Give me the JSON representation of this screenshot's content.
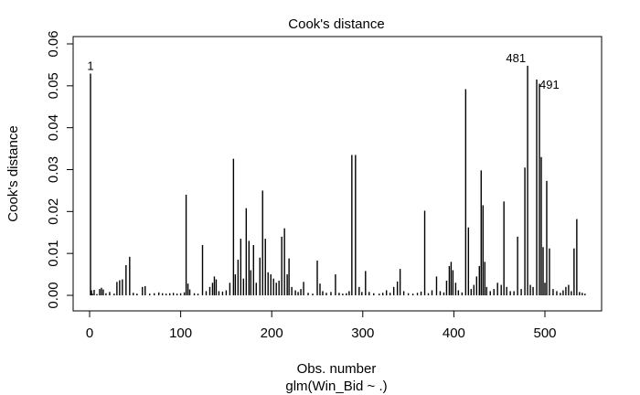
{
  "chart_data": {
    "type": "bar",
    "title": "Cook's distance",
    "xlabel": "Obs. number",
    "sublabel": "glm(Win_Bid ~ .)",
    "ylabel": "Cook's distance",
    "xlim": [
      0,
      545
    ],
    "ylim": [
      0,
      0.06
    ],
    "x_ticks": [
      0,
      100,
      200,
      300,
      400,
      500
    ],
    "y_ticks": [
      0.0,
      0.01,
      0.02,
      0.03,
      0.04,
      0.05,
      0.06
    ],
    "x_tick_labels": [
      "0",
      "100",
      "200",
      "300",
      "400",
      "500"
    ],
    "y_tick_labels": [
      "0.00",
      "0.01",
      "0.02",
      "0.03",
      "0.04",
      "0.05",
      "0.06"
    ],
    "grid": false,
    "annotations": [
      {
        "text": "1",
        "obs": 1
      },
      {
        "text": "481",
        "obs": 481
      },
      {
        "text": "491",
        "obs": 491
      }
    ],
    "points": [
      [
        1,
        0.0529
      ],
      [
        2,
        0.0012
      ],
      [
        3,
        0.0004
      ],
      [
        5,
        0.0013
      ],
      [
        8,
        0.0003
      ],
      [
        11,
        0.0015
      ],
      [
        13,
        0.0018
      ],
      [
        15,
        0.0014
      ],
      [
        18,
        0.0005
      ],
      [
        22,
        0.0008
      ],
      [
        27,
        0.0004
      ],
      [
        30,
        0.0032
      ],
      [
        33,
        0.0036
      ],
      [
        36,
        0.0038
      ],
      [
        40,
        0.0072
      ],
      [
        44,
        0.0092
      ],
      [
        48,
        0.0006
      ],
      [
        52,
        0.0004
      ],
      [
        58,
        0.002
      ],
      [
        61,
        0.0022
      ],
      [
        66,
        0.0004
      ],
      [
        71,
        0.0005
      ],
      [
        76,
        0.0007
      ],
      [
        80,
        0.0005
      ],
      [
        84,
        0.0004
      ],
      [
        88,
        0.0005
      ],
      [
        92,
        0.0006
      ],
      [
        96,
        0.0004
      ],
      [
        100,
        0.0005
      ],
      [
        104,
        0.0007
      ],
      [
        106,
        0.024
      ],
      [
        108,
        0.0028
      ],
      [
        110,
        0.0014
      ],
      [
        115,
        0.0005
      ],
      [
        119,
        0.0004
      ],
      [
        124,
        0.012
      ],
      [
        128,
        0.001
      ],
      [
        132,
        0.002
      ],
      [
        135,
        0.003
      ],
      [
        137,
        0.0045
      ],
      [
        139,
        0.0038
      ],
      [
        142,
        0.001
      ],
      [
        146,
        0.0009
      ],
      [
        150,
        0.0012
      ],
      [
        154,
        0.003
      ],
      [
        158,
        0.0326
      ],
      [
        160,
        0.005
      ],
      [
        163,
        0.0085
      ],
      [
        166,
        0.0135
      ],
      [
        169,
        0.004
      ],
      [
        172,
        0.0208
      ],
      [
        175,
        0.013
      ],
      [
        177,
        0.006
      ],
      [
        180,
        0.012
      ],
      [
        183,
        0.003
      ],
      [
        187,
        0.009
      ],
      [
        190,
        0.025
      ],
      [
        193,
        0.0135
      ],
      [
        196,
        0.0055
      ],
      [
        199,
        0.005
      ],
      [
        202,
        0.004
      ],
      [
        205,
        0.003
      ],
      [
        208,
        0.0035
      ],
      [
        211,
        0.014
      ],
      [
        214,
        0.016
      ],
      [
        217,
        0.005
      ],
      [
        219,
        0.0088
      ],
      [
        222,
        0.002
      ],
      [
        226,
        0.0012
      ],
      [
        229,
        0.0008
      ],
      [
        232,
        0.0015
      ],
      [
        235,
        0.0032
      ],
      [
        240,
        0.0006
      ],
      [
        245,
        0.0004
      ],
      [
        250,
        0.0083
      ],
      [
        253,
        0.0028
      ],
      [
        256,
        0.001
      ],
      [
        260,
        0.0006
      ],
      [
        265,
        0.0008
      ],
      [
        270,
        0.005
      ],
      [
        274,
        0.0006
      ],
      [
        278,
        0.0004
      ],
      [
        282,
        0.0005
      ],
      [
        285,
        0.001
      ],
      [
        288,
        0.0335
      ],
      [
        292,
        0.0335
      ],
      [
        296,
        0.002
      ],
      [
        299,
        0.0008
      ],
      [
        303,
        0.0058
      ],
      [
        307,
        0.0008
      ],
      [
        312,
        0.0005
      ],
      [
        318,
        0.0004
      ],
      [
        322,
        0.0006
      ],
      [
        326,
        0.0012
      ],
      [
        330,
        0.0006
      ],
      [
        334,
        0.002
      ],
      [
        338,
        0.0033
      ],
      [
        341,
        0.0063
      ],
      [
        345,
        0.001
      ],
      [
        350,
        0.0005
      ],
      [
        355,
        0.0004
      ],
      [
        360,
        0.0006
      ],
      [
        364,
        0.0009
      ],
      [
        368,
        0.0202
      ],
      [
        372,
        0.0005
      ],
      [
        376,
        0.0012
      ],
      [
        381,
        0.0045
      ],
      [
        385,
        0.001
      ],
      [
        389,
        0.0007
      ],
      [
        392,
        0.0035
      ],
      [
        395,
        0.007
      ],
      [
        397,
        0.008
      ],
      [
        399,
        0.006
      ],
      [
        402,
        0.003
      ],
      [
        405,
        0.0012
      ],
      [
        409,
        0.0007
      ],
      [
        413,
        0.0492
      ],
      [
        416,
        0.0162
      ],
      [
        419,
        0.0015
      ],
      [
        422,
        0.0025
      ],
      [
        425,
        0.0045
      ],
      [
        428,
        0.007
      ],
      [
        430,
        0.0298
      ],
      [
        432,
        0.0215
      ],
      [
        434,
        0.008
      ],
      [
        436,
        0.002
      ],
      [
        440,
        0.001
      ],
      [
        444,
        0.0015
      ],
      [
        448,
        0.003
      ],
      [
        452,
        0.0025
      ],
      [
        455,
        0.0224
      ],
      [
        458,
        0.002
      ],
      [
        462,
        0.001
      ],
      [
        466,
        0.001
      ],
      [
        470,
        0.014
      ],
      [
        474,
        0.0015
      ],
      [
        478,
        0.0305
      ],
      [
        481,
        0.0548
      ],
      [
        484,
        0.0025
      ],
      [
        487,
        0.002
      ],
      [
        491,
        0.0515
      ],
      [
        494,
        0.0505
      ],
      [
        496,
        0.033
      ],
      [
        498,
        0.0115
      ],
      [
        500,
        0.003
      ],
      [
        502,
        0.0273
      ],
      [
        505,
        0.0112
      ],
      [
        509,
        0.0015
      ],
      [
        513,
        0.001
      ],
      [
        517,
        0.0006
      ],
      [
        520,
        0.0012
      ],
      [
        523,
        0.002
      ],
      [
        526,
        0.0025
      ],
      [
        529,
        0.001
      ],
      [
        532,
        0.0112
      ],
      [
        535,
        0.0182
      ],
      [
        538,
        0.0008
      ],
      [
        541,
        0.0006
      ],
      [
        544,
        0.0004
      ]
    ]
  }
}
